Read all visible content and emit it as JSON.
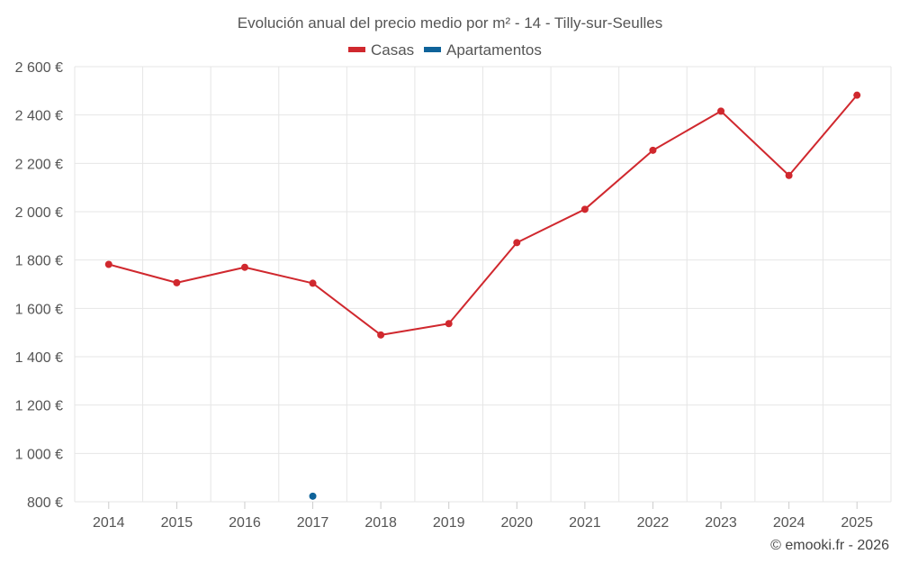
{
  "chart_data": {
    "type": "line",
    "title": "Evolución anual del precio medio por m² - 14 - Tilly-sur-Seulles",
    "categories": [
      "2014",
      "2015",
      "2016",
      "2017",
      "2018",
      "2019",
      "2020",
      "2021",
      "2022",
      "2023",
      "2024",
      "2025"
    ],
    "series": [
      {
        "name": "Casas",
        "color": "#d0282e",
        "values": [
          1782,
          1706,
          1770,
          1704,
          1490,
          1537,
          1872,
          2010,
          2254,
          2416,
          2150,
          2482
        ]
      },
      {
        "name": "Apartamentos",
        "color": "#0f639a",
        "values": [
          null,
          null,
          null,
          823,
          null,
          null,
          null,
          null,
          null,
          null,
          null,
          null
        ]
      }
    ],
    "ylim": [
      800,
      2600
    ],
    "yticks": [
      800,
      1000,
      1200,
      1400,
      1600,
      1800,
      2000,
      2200,
      2400,
      2600
    ],
    "ytick_labels": [
      "800 €",
      "1 000 €",
      "1 200 €",
      "1 400 €",
      "1 600 €",
      "1 800 €",
      "2 000 €",
      "2 200 €",
      "2 400 €",
      "2 600 €"
    ],
    "xlabel": "",
    "ylabel": "",
    "grid": true,
    "legend": "top-center"
  },
  "credit": "© emooki.fr - 2026"
}
